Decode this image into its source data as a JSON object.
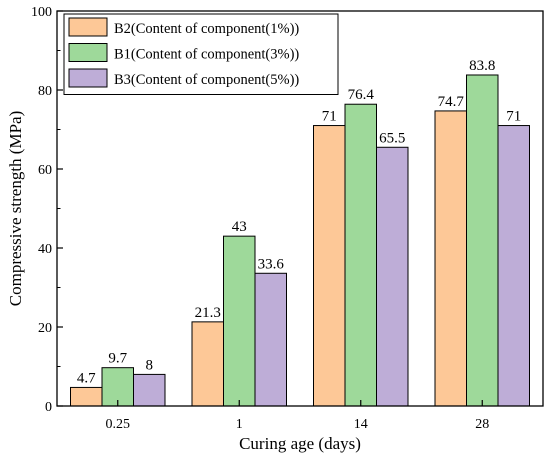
{
  "chart_data": {
    "type": "bar",
    "xlabel": "Curing age (days)",
    "ylabel": "Compressive strength (MPa)",
    "ylim": [
      0,
      100
    ],
    "yticks": [
      0,
      20,
      40,
      60,
      80,
      100
    ],
    "categories": [
      "0.25",
      "1",
      "14",
      "28"
    ],
    "series": [
      {
        "name": "B2(Content of component(1%))",
        "color": "#FDC897",
        "values": [
          4.7,
          21.3,
          71,
          74.7
        ],
        "labels": [
          "4.7",
          "21.3",
          "71",
          "74.7"
        ]
      },
      {
        "name": "B1(Content of component(3%))",
        "color": "#9ED99A",
        "values": [
          9.7,
          43,
          76.4,
          83.8
        ],
        "labels": [
          "9.7",
          "43",
          "76.4",
          "83.8"
        ]
      },
      {
        "name": "B3(Content of component(5%))",
        "color": "#BEADD7",
        "values": [
          8,
          33.6,
          65.5,
          71
        ],
        "labels": [
          "8",
          "33.6",
          "65.5",
          "71"
        ]
      }
    ],
    "legend_position": "top-left",
    "grid": false
  }
}
